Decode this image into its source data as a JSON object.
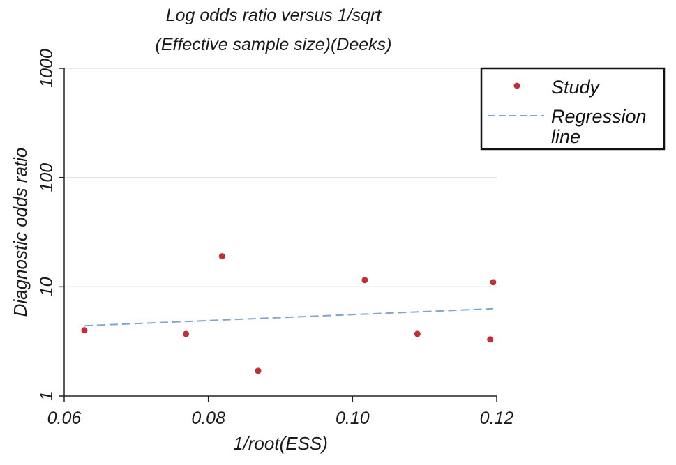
{
  "chart_data": {
    "type": "scatter",
    "title": [
      "Log odds ratio versus 1/sqrt",
      "(Effective sample size)(Deeks)"
    ],
    "xlabel": "1/root(ESS)",
    "ylabel": "Diagnostic odds ratio",
    "xlim": [
      0.06,
      0.12
    ],
    "ylim": [
      1,
      1000
    ],
    "y_scale": "log",
    "x_ticks": [
      0.06,
      0.08,
      0.1,
      0.12
    ],
    "x_tick_labels": [
      "0.06",
      "0.08",
      "0.10",
      "0.12"
    ],
    "y_ticks": [
      1,
      10,
      100,
      1000
    ],
    "y_tick_labels": [
      "1",
      "10",
      "100",
      "1000"
    ],
    "grid": "horizontal",
    "series": [
      {
        "name": "Study",
        "kind": "scatter",
        "color": "#c0303a",
        "x": [
          0.0628,
          0.0769,
          0.0819,
          0.0869,
          0.1017,
          0.109,
          0.1191,
          0.1195
        ],
        "y": [
          4.0,
          3.7,
          19.0,
          1.7,
          11.5,
          3.7,
          3.3,
          11.0
        ]
      },
      {
        "name": "Regression line",
        "kind": "line",
        "style": "dashed",
        "color": "#7fa6cf",
        "x": [
          0.0628,
          0.1195
        ],
        "y": [
          4.4,
          6.3
        ]
      }
    ],
    "legend": {
      "position": "top-right",
      "entries": [
        "Study",
        "Regression",
        "line"
      ]
    }
  }
}
